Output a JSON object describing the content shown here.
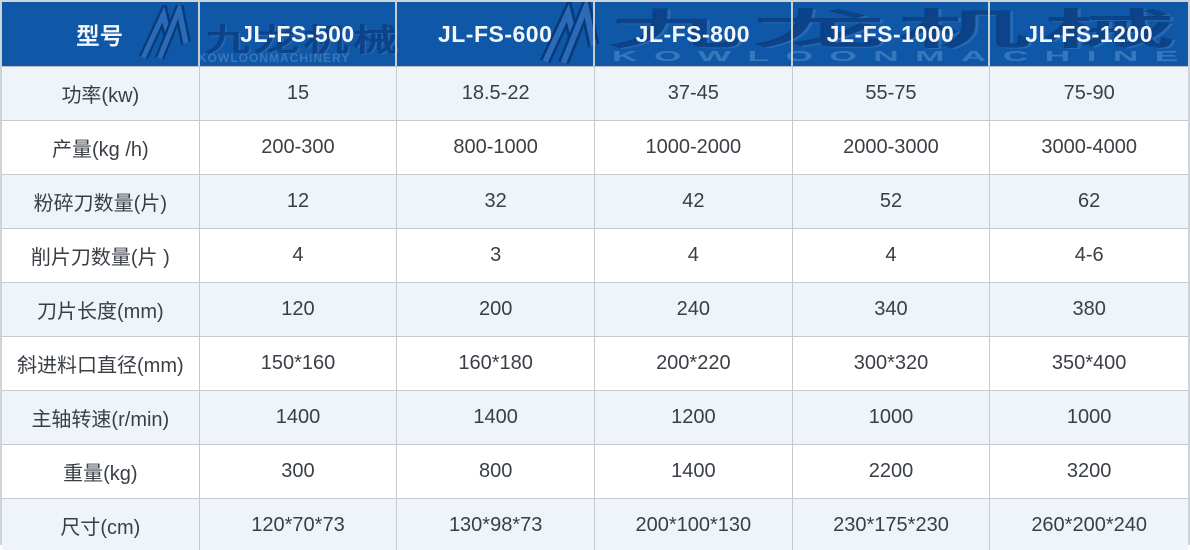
{
  "brand": {
    "watermark_cn": "九龙机械",
    "watermark_en": "KOWLOONMACHINERY",
    "logo_icon": "jl-monogram"
  },
  "table": {
    "header": [
      "型号",
      "JL-FS-500",
      "JL-FS-600",
      "JL-FS-800",
      "JL-FS-1000",
      "JL-FS-1200"
    ],
    "rows": [
      {
        "label": "功率(kw)",
        "values": [
          "15",
          "18.5-22",
          "37-45",
          "55-75",
          "75-90"
        ]
      },
      {
        "label": "产量(kg /h)",
        "values": [
          "200-300",
          "800-1000",
          "1000-2000",
          "2000-3000",
          "3000-4000"
        ]
      },
      {
        "label": "粉碎刀数量(片)",
        "values": [
          "12",
          "32",
          "42",
          "52",
          "62"
        ]
      },
      {
        "label": "削片刀数量(片 )",
        "values": [
          "4",
          "3",
          "4",
          "4",
          "4-6"
        ]
      },
      {
        "label": "刀片长度(mm)",
        "values": [
          "120",
          "200",
          "240",
          "340",
          "380"
        ]
      },
      {
        "label": "斜进料口直径(mm)",
        "values": [
          "150*160",
          "160*180",
          "200*220",
          "300*320",
          "350*400"
        ]
      },
      {
        "label": "主轴转速(r/min)",
        "values": [
          "1400",
          "1400",
          "1200",
          "1000",
          "1000"
        ]
      },
      {
        "label": "重量(kg)",
        "values": [
          "300",
          "800",
          "1400",
          "2200",
          "3200"
        ]
      },
      {
        "label": "尺寸(cm)",
        "values": [
          "120*70*73",
          "130*98*73",
          "200*100*130",
          "230*175*230",
          "260*200*240"
        ]
      }
    ]
  },
  "colors": {
    "header_bg": "#0f57a7",
    "header_text": "#f4f6f9",
    "row_alt_bg": "#eff4fa",
    "row_bg": "#ffffff",
    "grid_line": "#c5cace",
    "body_text": "#3a3f46",
    "watermark_dark": "#093c80",
    "watermark_light": "#4682c3"
  }
}
